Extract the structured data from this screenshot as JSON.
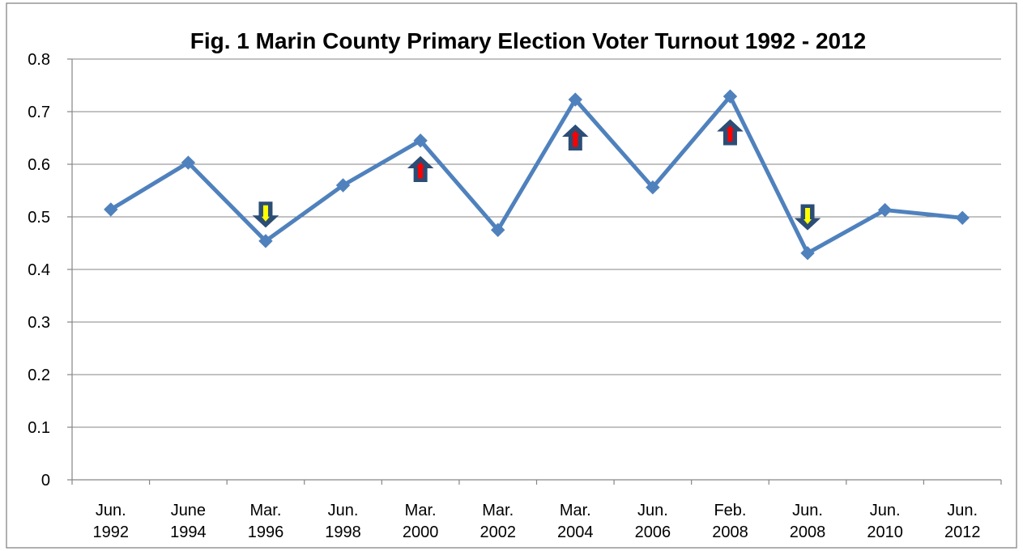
{
  "chart_data": {
    "type": "line",
    "title": "Fig. 1 Marin County Primary Election Voter Turnout 1992 - 2012",
    "xlabel": "",
    "ylabel": "",
    "categories": [
      [
        "Jun.",
        "1992"
      ],
      [
        "June",
        "1994"
      ],
      [
        "Mar.",
        "1996"
      ],
      [
        "Jun.",
        "1998"
      ],
      [
        "Mar.",
        "2000"
      ],
      [
        "Mar.",
        "2002"
      ],
      [
        "Mar.",
        "2004"
      ],
      [
        "Jun.",
        "2006"
      ],
      [
        "Feb.",
        "2008"
      ],
      [
        "Jun.",
        "2008"
      ],
      [
        "Jun.",
        "2010"
      ],
      [
        "Jun.",
        "2012"
      ]
    ],
    "series": [
      {
        "values": [
          0.514,
          0.603,
          0.454,
          0.56,
          0.645,
          0.475,
          0.723,
          0.556,
          0.729,
          0.431,
          0.513,
          0.498
        ],
        "color": "#4F81BD"
      }
    ],
    "ylim": [
      0,
      0.8
    ],
    "yticks": [
      "0",
      "0.1",
      "0.2",
      "0.3",
      "0.4",
      "0.5",
      "0.6",
      "0.7",
      "0.8"
    ],
    "grid": "horizontal",
    "legend": "none",
    "annotations": [
      {
        "category_index": 2,
        "direction": "down",
        "value": 0.505,
        "fill": "#FFFF00"
      },
      {
        "category_index": 4,
        "direction": "up",
        "value": 0.59,
        "fill": "#FF0000"
      },
      {
        "category_index": 6,
        "direction": "up",
        "value": 0.65,
        "fill": "#FF0000"
      },
      {
        "category_index": 8,
        "direction": "up",
        "value": 0.66,
        "fill": "#FF0000"
      },
      {
        "category_index": 9,
        "direction": "down",
        "value": 0.5,
        "fill": "#FFFF00"
      }
    ],
    "arrow_outline_color": "#2C4D75"
  }
}
